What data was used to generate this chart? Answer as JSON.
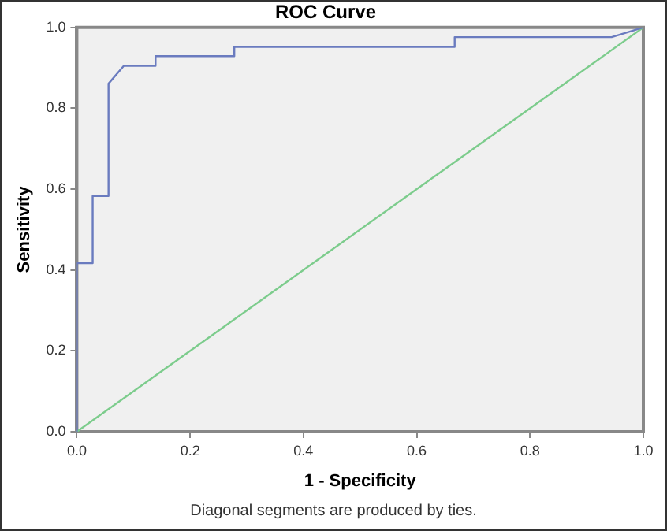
{
  "chart_data": {
    "type": "line",
    "title": "ROC Curve",
    "xlabel": "1 - Specificity",
    "ylabel": "Sensitivity",
    "annotations": [
      "Diagonal segments are produced by ties."
    ],
    "xlim": [
      0,
      1
    ],
    "ylim": [
      0,
      1
    ],
    "xticks": [
      {
        "value": 0,
        "label": "0.0"
      },
      {
        "value": 0.2,
        "label": "0.2"
      },
      {
        "value": 0.4,
        "label": "0.4"
      },
      {
        "value": 0.6,
        "label": "0.6"
      },
      {
        "value": 0.8,
        "label": "0.8"
      },
      {
        "value": 1,
        "label": "1.0"
      }
    ],
    "yticks": [
      {
        "value": 0,
        "label": "0.0"
      },
      {
        "value": 0.2,
        "label": "0.2"
      },
      {
        "value": 0.4,
        "label": "0.4"
      },
      {
        "value": 0.6,
        "label": "0.6"
      },
      {
        "value": 0.8,
        "label": "0.8"
      },
      {
        "value": 1,
        "label": "1.0"
      }
    ],
    "grid": false,
    "legend": false,
    "marker": "none",
    "line_style": "solid",
    "series": [
      {
        "color": "#6a7bbf",
        "x": [
          0,
          0,
          0.028,
          0.028,
          0.056,
          0.056,
          0.083,
          0.139,
          0.139,
          0.278,
          0.278,
          0.667,
          0.667,
          0.944,
          1
        ],
        "values": [
          0,
          0.417,
          0.417,
          0.583,
          0.583,
          0.861,
          0.905,
          0.905,
          0.929,
          0.929,
          0.952,
          0.952,
          0.976,
          0.976,
          1
        ]
      },
      {
        "color": "#7ccc8c",
        "x": [
          0,
          1
        ],
        "values": [
          0,
          1
        ]
      }
    ]
  }
}
